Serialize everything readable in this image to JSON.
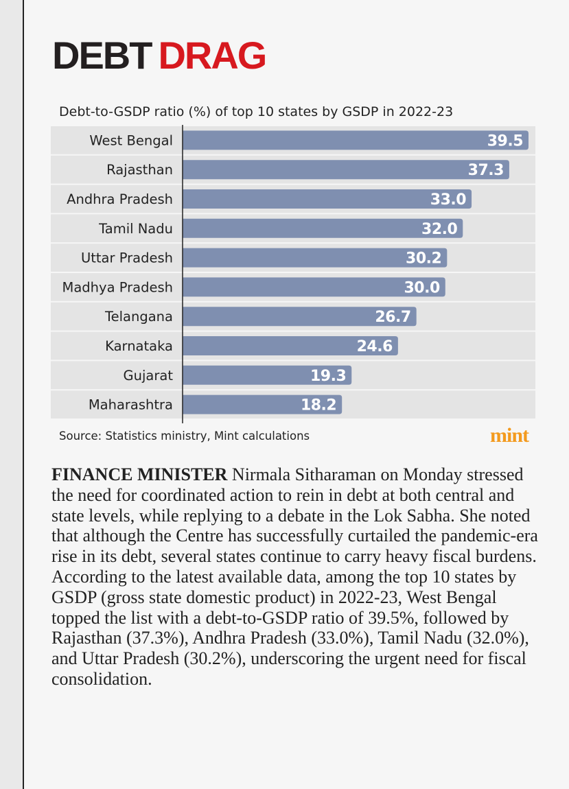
{
  "header": {
    "title": [
      "DEBT",
      "DRAG"
    ]
  },
  "chart_data": {
    "type": "bar",
    "orientation": "horizontal",
    "subtitle": "Debt-to-GSDP ratio (%) of top 10 states by GSDP in 2022-23",
    "categories": [
      "West Bengal",
      "Rajasthan",
      "Andhra Pradesh",
      "Tamil Nadu",
      "Uttar Pradesh",
      "Madhya Pradesh",
      "Telangana",
      "Karnataka",
      "Gujarat",
      "Maharashtra"
    ],
    "values": [
      39.5,
      37.3,
      33,
      32,
      30.2,
      30,
      26.7,
      24.6,
      19.3,
      18.2
    ],
    "value_labels": [
      "39.5",
      "37.3",
      "33.0",
      "32.0",
      "30.2",
      "30.0",
      "26.7",
      "24.6",
      "19.3",
      "18.2"
    ],
    "color": "#7f8fb0",
    "source": "Source: Statistics ministry, Mint calculations"
  },
  "logo": "mint",
  "body": {
    "lead": "FINANCE MINISTER",
    "text": "Nirmala Sitharaman on Monday stressed the need for coordinated action to rein in debt at both central and state levels, while replying to a debate in the Lok Sabha. She noted that although the Centre has successfully curtailed the pandemic-era rise in its debt, several states continue to carry heavy fiscal burdens.  According to the latest available data, among the top 10 states by GSDP (gross state domestic product) in 2022-23, West Bengal topped the list with a debt-to-GSDP ratio of 39.5%, followed by Rajasthan (37.3%), Andhra Pradesh (33.0%), Tamil Nadu (32.0%), and Uttar Pradesh (30.2%), underscoring the urgent need for fiscal consolidation."
  }
}
